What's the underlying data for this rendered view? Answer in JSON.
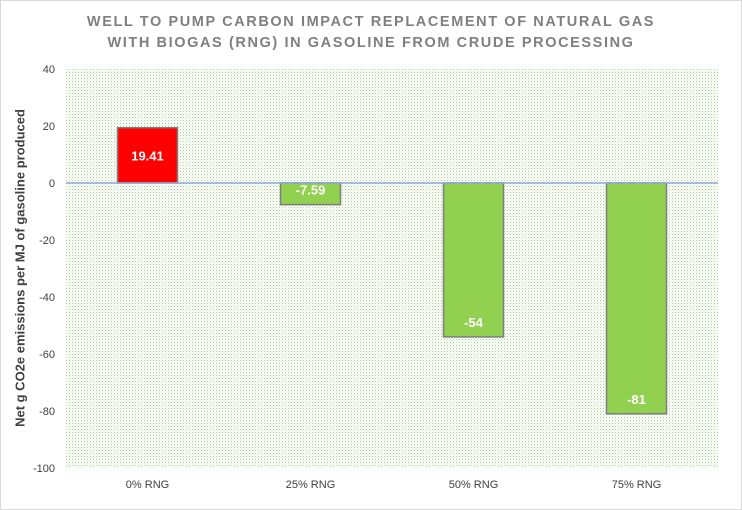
{
  "chart_data": {
    "type": "bar",
    "title_lines": [
      "WELL TO PUMP CARBON IMPACT REPLACEMENT OF NATURAL GAS",
      "WITH BIOGAS (RNG) IN GASOLINE FROM CRUDE  PROCESSING"
    ],
    "xlabel": "",
    "ylabel": "Net g CO2e emissions per MJ of gasoline produced",
    "categories": [
      "0% RNG",
      "25% RNG",
      "50% RNG",
      "75% RNG"
    ],
    "values": [
      19.41,
      -7.59,
      -54,
      -81
    ],
    "data_labels": [
      "19.41",
      "-7.59",
      "-54",
      "-81"
    ],
    "ylim": [
      -100,
      40
    ],
    "yticks": [
      40,
      20,
      0,
      -20,
      -40,
      -60,
      -80,
      -100
    ],
    "grid": false,
    "legend": "none",
    "colors": {
      "positive_fill": "#ff0000",
      "negative_fill": "#92d050",
      "bar_border": "#7f7f7f",
      "plot_pattern": "#a9d18e",
      "zero_line": "#8faadc"
    }
  }
}
